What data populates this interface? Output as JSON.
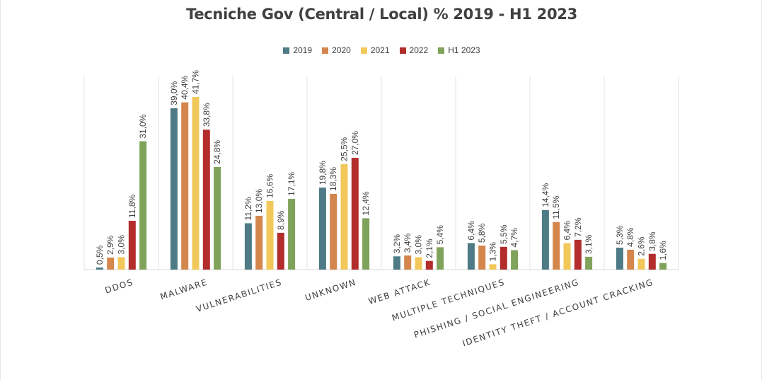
{
  "chart_data": {
    "type": "bar",
    "title": "Tecniche Gov (Central / Local) % 2019 - H1 2023",
    "xlabel": "",
    "ylabel": "",
    "ylim": [
      0,
      45
    ],
    "legend_position": "top",
    "grid": false,
    "categories": [
      "DDOS",
      "MALWARE",
      "VULNERABILITIES",
      "UNKNOWN",
      "WEB ATTACK",
      "MULTIPLE TECHNIQUES",
      "PHISHING / SOCIAL ENGINEERING",
      "IDENTITY THEFT / ACCOUNT CRACKING"
    ],
    "series": [
      {
        "name": "2019",
        "color": "#4e7b86",
        "values": [
          0.5,
          39.0,
          11.2,
          19.8,
          3.2,
          6.4,
          14.4,
          5.3
        ],
        "labels": [
          "0,5%",
          "39,0%",
          "11,2%",
          "19,8%",
          "3,2%",
          "6,4%",
          "14,4%",
          "5,3%"
        ]
      },
      {
        "name": "2020",
        "color": "#d4864d",
        "values": [
          2.9,
          40.4,
          13.0,
          18.3,
          3.4,
          5.8,
          11.5,
          4.8
        ],
        "labels": [
          "2,9%",
          "40,4%",
          "13,0%",
          "18,3%",
          "3,4%",
          "5,8%",
          "11,5%",
          "4,8%"
        ]
      },
      {
        "name": "2021",
        "color": "#f2c85a",
        "values": [
          3.0,
          41.7,
          16.6,
          25.5,
          3.0,
          1.3,
          6.4,
          2.6
        ],
        "labels": [
          "3,0%",
          "41,7%",
          "16,6%",
          "25,5%",
          "3,0%",
          "1,3%",
          "6,4%",
          "2,6%"
        ]
      },
      {
        "name": "2022",
        "color": "#b32d2d",
        "values": [
          11.8,
          33.8,
          8.9,
          27.0,
          2.1,
          5.5,
          7.2,
          3.8
        ],
        "labels": [
          "11,8%",
          "33,8%",
          "8,9%",
          "27,0%",
          "2,1%",
          "5,5%",
          "7,2%",
          "3,8%"
        ]
      },
      {
        "name": "H1 2023",
        "color": "#7fa35a",
        "values": [
          31.0,
          24.8,
          17.1,
          12.4,
          5.4,
          4.7,
          3.1,
          1.6
        ],
        "labels": [
          "31,0%",
          "24,8%",
          "17,1%",
          "12,4%",
          "5,4%",
          "4,7%",
          "3,1%",
          "1,6%"
        ]
      }
    ]
  }
}
